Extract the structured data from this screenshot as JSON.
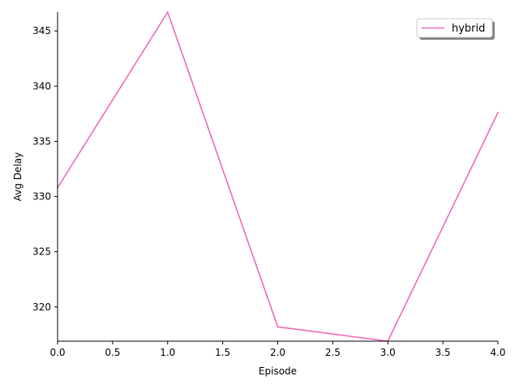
{
  "chart_data": {
    "type": "line",
    "title": "",
    "xlabel": "Episode",
    "ylabel": "Avg Delay",
    "xlim": [
      0,
      4
    ],
    "ylim": [
      316.9,
      346.7
    ],
    "x_ticks": [
      0.0,
      0.5,
      1.0,
      1.5,
      2.0,
      2.5,
      3.0,
      3.5,
      4.0
    ],
    "x_tick_labels": [
      "0.0",
      "0.5",
      "1.0",
      "1.5",
      "2.0",
      "2.5",
      "3.0",
      "3.5",
      "4.0"
    ],
    "y_ticks": [
      320,
      325,
      330,
      335,
      340,
      345
    ],
    "y_tick_labels": [
      "320",
      "325",
      "330",
      "335",
      "340",
      "345"
    ],
    "grid": false,
    "legend_position": "top-right",
    "series": [
      {
        "name": "hybrid",
        "color": "#f068b8",
        "x": [
          0,
          1,
          2,
          3,
          4
        ],
        "y": [
          330.8,
          346.7,
          318.2,
          316.9,
          337.6
        ]
      }
    ]
  }
}
